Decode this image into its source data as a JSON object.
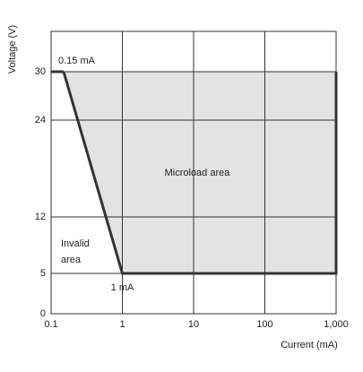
{
  "chart_data": {
    "type": "area",
    "y_label": "Voltage (V)",
    "x_label": "Current (mA)",
    "xscale": "log",
    "xlim": [
      0.1,
      1000
    ],
    "xticks": [
      0.1,
      1,
      10,
      100,
      {
        "value": 1000,
        "label": "1,000"
      }
    ],
    "ylim": [
      0,
      35
    ],
    "yticks": [
      0,
      5,
      12,
      24,
      30
    ],
    "grid": true,
    "region": {
      "x": [
        0.15,
        1,
        1000,
        1000
      ],
      "y": [
        30,
        5,
        5,
        30
      ],
      "fill": "#e3e3e3",
      "color": "#333333"
    },
    "annotations": {
      "top_point": "0.15 mA",
      "bottom_point": "1 mA",
      "region_label": "Microload area",
      "invalid_label": [
        "Invalid",
        "area"
      ]
    }
  }
}
